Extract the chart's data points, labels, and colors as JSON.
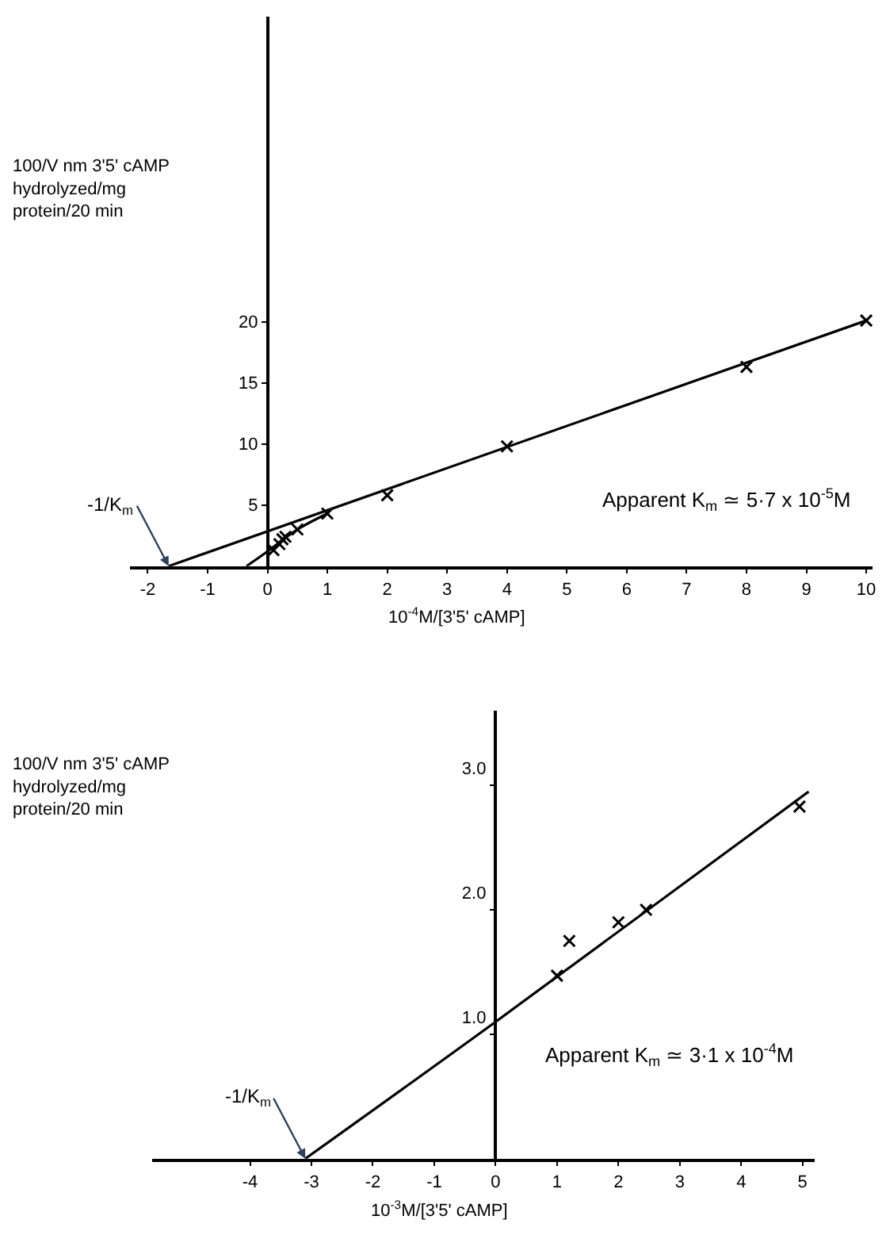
{
  "chart_data": [
    {
      "type": "scatter",
      "xlabel": "10$^{-4}$M/[3'5' cAMP]",
      "ylabel": "100/V nm 3'5' cAMP hydrolyzed/mg protein/20 min",
      "xlim": [
        -2.3,
        10.1
      ],
      "ylim": [
        0,
        45
      ],
      "xticks": [
        -2,
        -1,
        0,
        1,
        2,
        3,
        4,
        5,
        6,
        7,
        8,
        9,
        10
      ],
      "yticks": [
        5,
        10,
        15,
        20
      ],
      "series": [
        {
          "marker": "cross",
          "color": "#000000",
          "x": [
            0.1,
            0.2,
            0.25,
            0.3,
            0.5,
            1,
            2,
            4,
            8,
            10
          ],
          "values": [
            1.3,
            1.8,
            2.2,
            2.4,
            3.0,
            4.3,
            5.8,
            9.8,
            16.3,
            20.1
          ]
        },
        {
          "type": "line",
          "marker": "none",
          "color": "#000000",
          "x": [
            -1.65,
            10
          ],
          "values": [
            0,
            20.1
          ]
        },
        {
          "type": "line",
          "marker": "none",
          "color": "#000000",
          "x": [
            -0.35,
            0,
            0.5,
            1
          ],
          "values": [
            0,
            1.2,
            3.0,
            4.3
          ]
        }
      ],
      "annotations": [
        {
          "text": "-1/K$_{m}$",
          "x": -1.65,
          "y": 0
        },
        "Apparent K$_{m}$ ≃ 5·7 x 10$^{-5}$M"
      ]
    },
    {
      "type": "scatter",
      "xlabel": "10$^{-3}$M/[3'5' cAMP]",
      "ylabel": "100/V nm 3'5' cAMP hydrolyzed/mg protein/20 min",
      "xlim": [
        -5.6,
        5.2
      ],
      "ylim": [
        0,
        3.6
      ],
      "xticks": [
        -4,
        -3,
        -2,
        -1,
        0,
        1,
        2,
        3,
        4,
        5
      ],
      "yticks": [
        {
          "value": 1,
          "label": "1.0"
        },
        {
          "value": 2,
          "label": "2.0"
        },
        {
          "value": 3,
          "label": "3.0"
        }
      ],
      "series": [
        {
          "marker": "cross",
          "color": "#000000",
          "x": [
            1,
            1.2,
            2,
            2.45,
            4.95
          ],
          "values": [
            1.47,
            1.75,
            1.9,
            2.0,
            2.83
          ]
        },
        {
          "type": "line",
          "marker": "none",
          "color": "#000000",
          "x": [
            -3.1,
            0,
            5.1
          ],
          "values": [
            0,
            1.1,
            2.95
          ]
        }
      ],
      "annotations": [
        {
          "text": "-1/K$_{m}$",
          "x": -3.1,
          "y": 0
        },
        "Apparent K$_{m}$ ≃ 3·1 x 10$^{-4}$M"
      ]
    }
  ]
}
